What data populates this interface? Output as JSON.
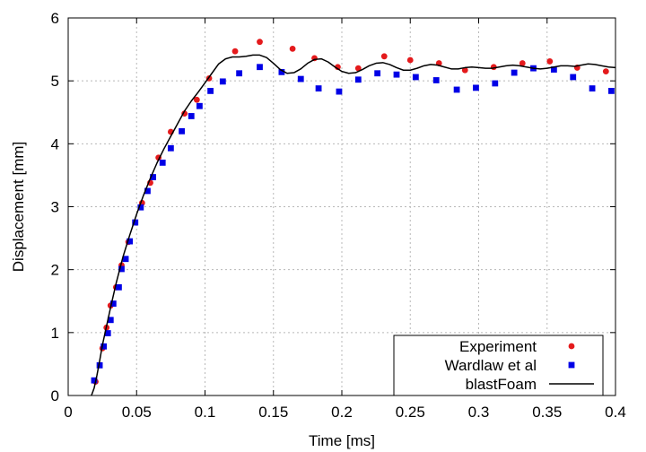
{
  "chart_data": {
    "type": "scatter",
    "xlabel": "Time [ms]",
    "ylabel": "Displacement [mm]",
    "xlim": [
      0,
      0.4
    ],
    "ylim": [
      0,
      6
    ],
    "xticks": [
      "0",
      "0.05",
      "0.1",
      "0.15",
      "0.2",
      "0.25",
      "0.3",
      "0.35",
      "0.4"
    ],
    "yticks": [
      "0",
      "1",
      "2",
      "3",
      "4",
      "5",
      "6"
    ],
    "grid": true,
    "legend_position": "bottom-right",
    "series": [
      {
        "name": "Experiment",
        "marker": "circle",
        "color": "#e41a1c",
        "points": [
          [
            0.02,
            0.22
          ],
          [
            0.025,
            0.75
          ],
          [
            0.028,
            1.08
          ],
          [
            0.031,
            1.43
          ],
          [
            0.035,
            1.72
          ],
          [
            0.039,
            2.07
          ],
          [
            0.044,
            2.44
          ],
          [
            0.049,
            2.75
          ],
          [
            0.054,
            3.06
          ],
          [
            0.06,
            3.38
          ],
          [
            0.066,
            3.78
          ],
          [
            0.075,
            4.19
          ],
          [
            0.085,
            4.48
          ],
          [
            0.094,
            4.7
          ],
          [
            0.103,
            5.04
          ],
          [
            0.122,
            5.47
          ],
          [
            0.14,
            5.62
          ],
          [
            0.164,
            5.51
          ],
          [
            0.18,
            5.36
          ],
          [
            0.197,
            5.22
          ],
          [
            0.212,
            5.2
          ],
          [
            0.231,
            5.39
          ],
          [
            0.25,
            5.33
          ],
          [
            0.271,
            5.28
          ],
          [
            0.29,
            5.17
          ],
          [
            0.311,
            5.22
          ],
          [
            0.332,
            5.28
          ],
          [
            0.352,
            5.31
          ],
          [
            0.372,
            5.21
          ],
          [
            0.393,
            5.15
          ]
        ]
      },
      {
        "name": "Wardlaw et al",
        "marker": "square",
        "color": "#0000e6",
        "points": [
          [
            0.019,
            0.24
          ],
          [
            0.023,
            0.48
          ],
          [
            0.026,
            0.78
          ],
          [
            0.029,
            0.99
          ],
          [
            0.031,
            1.2
          ],
          [
            0.033,
            1.46
          ],
          [
            0.037,
            1.72
          ],
          [
            0.039,
            2.01
          ],
          [
            0.042,
            2.17
          ],
          [
            0.045,
            2.45
          ],
          [
            0.049,
            2.75
          ],
          [
            0.053,
            2.99
          ],
          [
            0.058,
            3.25
          ],
          [
            0.062,
            3.47
          ],
          [
            0.069,
            3.7
          ],
          [
            0.075,
            3.93
          ],
          [
            0.083,
            4.2
          ],
          [
            0.09,
            4.44
          ],
          [
            0.096,
            4.6
          ],
          [
            0.104,
            4.84
          ],
          [
            0.113,
            4.99
          ],
          [
            0.125,
            5.12
          ],
          [
            0.14,
            5.22
          ],
          [
            0.156,
            5.14
          ],
          [
            0.17,
            5.03
          ],
          [
            0.183,
            4.88
          ],
          [
            0.198,
            4.83
          ],
          [
            0.212,
            5.02
          ],
          [
            0.226,
            5.12
          ],
          [
            0.24,
            5.1
          ],
          [
            0.254,
            5.06
          ],
          [
            0.269,
            5.01
          ],
          [
            0.284,
            4.86
          ],
          [
            0.298,
            4.89
          ],
          [
            0.312,
            4.96
          ],
          [
            0.326,
            5.13
          ],
          [
            0.34,
            5.2
          ],
          [
            0.355,
            5.18
          ],
          [
            0.369,
            5.06
          ],
          [
            0.383,
            4.88
          ],
          [
            0.397,
            4.84
          ]
        ]
      },
      {
        "name": "blastFoam",
        "marker": "line",
        "color": "#000000",
        "points": [
          [
            0.017,
            0.0
          ],
          [
            0.019,
            0.12
          ],
          [
            0.021,
            0.32
          ],
          [
            0.023,
            0.55
          ],
          [
            0.025,
            0.8
          ],
          [
            0.028,
            1.1
          ],
          [
            0.031,
            1.4
          ],
          [
            0.035,
            1.78
          ],
          [
            0.04,
            2.2
          ],
          [
            0.045,
            2.55
          ],
          [
            0.05,
            2.88
          ],
          [
            0.055,
            3.18
          ],
          [
            0.06,
            3.45
          ],
          [
            0.065,
            3.7
          ],
          [
            0.07,
            3.92
          ],
          [
            0.075,
            4.12
          ],
          [
            0.08,
            4.32
          ],
          [
            0.085,
            4.52
          ],
          [
            0.09,
            4.68
          ],
          [
            0.095,
            4.82
          ],
          [
            0.1,
            4.97
          ],
          [
            0.105,
            5.12
          ],
          [
            0.11,
            5.27
          ],
          [
            0.115,
            5.35
          ],
          [
            0.12,
            5.38
          ],
          [
            0.125,
            5.38
          ],
          [
            0.13,
            5.39
          ],
          [
            0.135,
            5.41
          ],
          [
            0.14,
            5.41
          ],
          [
            0.145,
            5.37
          ],
          [
            0.15,
            5.28
          ],
          [
            0.155,
            5.18
          ],
          [
            0.16,
            5.12
          ],
          [
            0.165,
            5.13
          ],
          [
            0.17,
            5.19
          ],
          [
            0.175,
            5.28
          ],
          [
            0.18,
            5.34
          ],
          [
            0.185,
            5.35
          ],
          [
            0.19,
            5.3
          ],
          [
            0.195,
            5.22
          ],
          [
            0.2,
            5.15
          ],
          [
            0.205,
            5.12
          ],
          [
            0.21,
            5.13
          ],
          [
            0.215,
            5.18
          ],
          [
            0.22,
            5.24
          ],
          [
            0.225,
            5.28
          ],
          [
            0.23,
            5.29
          ],
          [
            0.235,
            5.26
          ],
          [
            0.24,
            5.21
          ],
          [
            0.245,
            5.17
          ],
          [
            0.25,
            5.17
          ],
          [
            0.255,
            5.2
          ],
          [
            0.26,
            5.24
          ],
          [
            0.265,
            5.26
          ],
          [
            0.27,
            5.25
          ],
          [
            0.275,
            5.22
          ],
          [
            0.28,
            5.19
          ],
          [
            0.285,
            5.19
          ],
          [
            0.29,
            5.21
          ],
          [
            0.295,
            5.22
          ],
          [
            0.3,
            5.21
          ],
          [
            0.305,
            5.2
          ],
          [
            0.31,
            5.2
          ],
          [
            0.315,
            5.22
          ],
          [
            0.32,
            5.24
          ],
          [
            0.325,
            5.25
          ],
          [
            0.33,
            5.24
          ],
          [
            0.335,
            5.22
          ],
          [
            0.34,
            5.2
          ],
          [
            0.345,
            5.19
          ],
          [
            0.35,
            5.2
          ],
          [
            0.355,
            5.22
          ],
          [
            0.36,
            5.24
          ],
          [
            0.365,
            5.24
          ],
          [
            0.37,
            5.23
          ],
          [
            0.375,
            5.25
          ],
          [
            0.38,
            5.27
          ],
          [
            0.385,
            5.26
          ],
          [
            0.39,
            5.24
          ],
          [
            0.395,
            5.22
          ],
          [
            0.4,
            5.21
          ]
        ]
      }
    ]
  }
}
